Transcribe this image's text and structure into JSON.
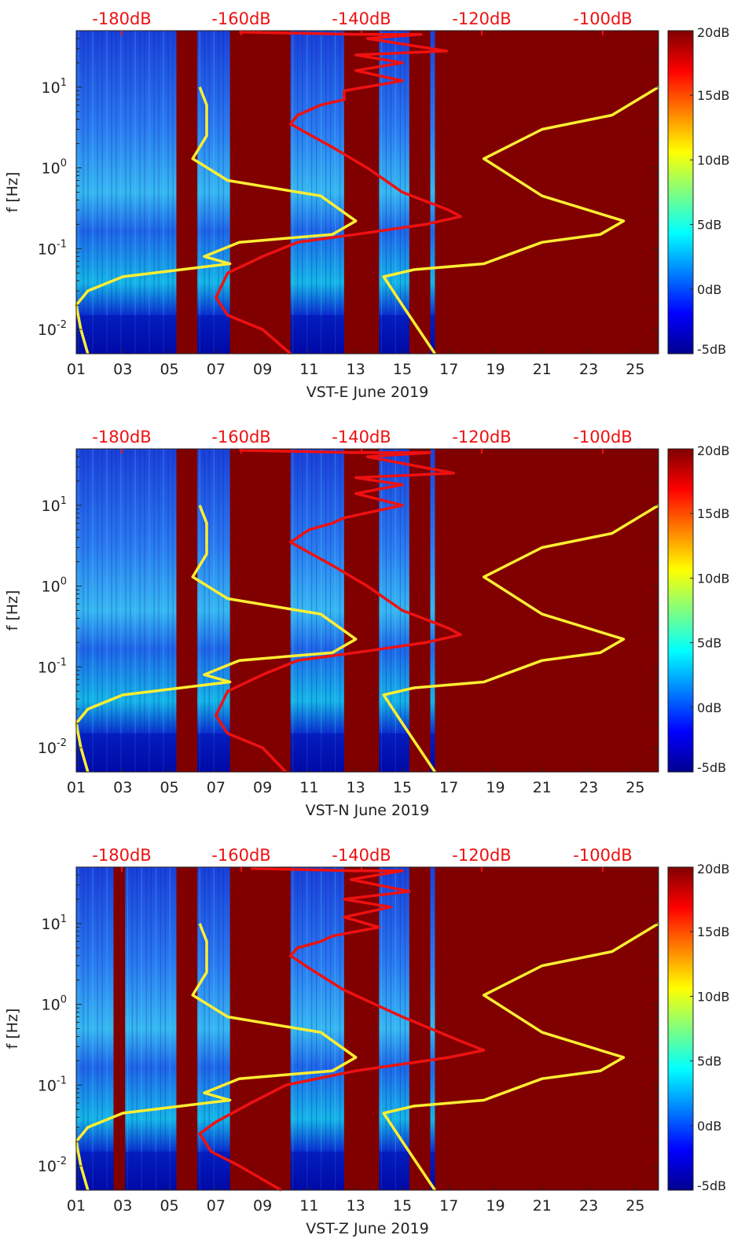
{
  "chart_data": [
    {
      "type": "heatmap",
      "xlabel": "VST-E June 2019",
      "ylabel": "f [Hz]",
      "x_ticks": [
        "01",
        "03",
        "05",
        "07",
        "09",
        "11",
        "13",
        "15",
        "17",
        "19",
        "21",
        "23",
        "25"
      ],
      "x_range": [
        1,
        26
      ],
      "y_scale": "log",
      "y_range": [
        0.005,
        50
      ],
      "y_ticks": [
        "10-2",
        "10-1",
        "100",
        "101"
      ],
      "top_axis_ticks": [
        "-180dB",
        "-160dB",
        "-140dB",
        "-120dB",
        "-100dB"
      ],
      "colorbar": {
        "ticks": [
          "20dB",
          "15dB",
          "10dB",
          "5dB",
          "0dB",
          "-5dB"
        ],
        "range": [
          -5,
          20
        ]
      },
      "data_columns": [
        [
          1,
          5.3
        ],
        [
          6.2,
          7.6
        ],
        [
          10.2,
          12.5
        ],
        [
          14,
          15.3
        ],
        [
          16.2,
          16.4
        ]
      ],
      "series": [
        {
          "color": "#ffee33",
          "points": [
            [
              6.3,
              10
            ],
            [
              6.6,
              6
            ],
            [
              6.6,
              2.5
            ],
            [
              6.0,
              1.3
            ],
            [
              7.5,
              0.7
            ],
            [
              11.5,
              0.45
            ],
            [
              13.0,
              0.22
            ],
            [
              12.0,
              0.15
            ],
            [
              8.0,
              0.12
            ],
            [
              6.5,
              0.08
            ],
            [
              7.6,
              0.065
            ],
            [
              5.5,
              0.055
            ],
            [
              3.0,
              0.045
            ],
            [
              1.5,
              0.03
            ],
            [
              1.0,
              0.02
            ],
            [
              1.2,
              0.01
            ],
            [
              1.5,
              0.005
            ]
          ]
        },
        {
          "color": "#ffee33",
          "points": [
            [
              26.0,
              10
            ],
            [
              24.0,
              4.5
            ],
            [
              21.0,
              3.0
            ],
            [
              18.5,
              1.3
            ],
            [
              21.0,
              0.45
            ],
            [
              24.5,
              0.22
            ],
            [
              23.5,
              0.15
            ],
            [
              21.0,
              0.12
            ],
            [
              18.5,
              0.065
            ],
            [
              15.5,
              0.055
            ],
            [
              14.2,
              0.045
            ],
            [
              15.0,
              0.02
            ],
            [
              16.4,
              0.005
            ]
          ]
        },
        {
          "color": "#ee1111",
          "points": [
            [
              8.0,
              48
            ],
            [
              13.0,
              45
            ],
            [
              15.8,
              45
            ],
            [
              13.5,
              40
            ],
            [
              16.9,
              28
            ],
            [
              13.0,
              25
            ],
            [
              15.0,
              20
            ],
            [
              13.0,
              16
            ],
            [
              15.0,
              12
            ],
            [
              12.5,
              9
            ],
            [
              12.5,
              7
            ],
            [
              11.5,
              6
            ],
            [
              10.5,
              4.5
            ],
            [
              10.2,
              3.5
            ],
            [
              11.0,
              2.6
            ],
            [
              12.0,
              1.8
            ],
            [
              13.5,
              1.0
            ],
            [
              15.0,
              0.5
            ],
            [
              17.0,
              0.3
            ],
            [
              17.5,
              0.25
            ],
            [
              16.0,
              0.2
            ],
            [
              13.0,
              0.15
            ],
            [
              10.5,
              0.12
            ],
            [
              9.0,
              0.08
            ],
            [
              7.5,
              0.05
            ],
            [
              7.0,
              0.025
            ],
            [
              7.5,
              0.015
            ],
            [
              9.0,
              0.01
            ],
            [
              10.2,
              0.005
            ]
          ]
        }
      ]
    },
    {
      "type": "heatmap",
      "xlabel": "VST-N June 2019",
      "ylabel": "f [Hz]",
      "x_ticks": [
        "01",
        "03",
        "05",
        "07",
        "09",
        "11",
        "13",
        "15",
        "17",
        "19",
        "21",
        "23",
        "25"
      ],
      "x_range": [
        1,
        26
      ],
      "y_scale": "log",
      "y_range": [
        0.005,
        50
      ],
      "y_ticks": [
        "10-2",
        "10-1",
        "100",
        "101"
      ],
      "top_axis_ticks": [
        "-180dB",
        "-160dB",
        "-140dB",
        "-120dB",
        "-100dB"
      ],
      "colorbar": {
        "ticks": [
          "20dB",
          "15dB",
          "10dB",
          "5dB",
          "0dB",
          "-5dB"
        ],
        "range": [
          -5,
          20
        ]
      },
      "data_columns": [
        [
          1,
          5.3
        ],
        [
          6.2,
          7.6
        ],
        [
          10.2,
          12.5
        ],
        [
          14,
          15.3
        ],
        [
          16.2,
          16.4
        ]
      ],
      "series": [
        {
          "color": "#ffee33",
          "points": [
            [
              6.3,
              10
            ],
            [
              6.6,
              6
            ],
            [
              6.6,
              2.5
            ],
            [
              6.0,
              1.3
            ],
            [
              7.5,
              0.7
            ],
            [
              11.5,
              0.45
            ],
            [
              13.0,
              0.22
            ],
            [
              12.0,
              0.15
            ],
            [
              8.0,
              0.12
            ],
            [
              6.5,
              0.08
            ],
            [
              7.6,
              0.065
            ],
            [
              5.5,
              0.055
            ],
            [
              3.0,
              0.045
            ],
            [
              1.5,
              0.03
            ],
            [
              1.0,
              0.02
            ],
            [
              1.2,
              0.01
            ],
            [
              1.5,
              0.005
            ]
          ]
        },
        {
          "color": "#ffee33",
          "points": [
            [
              26.0,
              10
            ],
            [
              24.0,
              4.5
            ],
            [
              21.0,
              3.0
            ],
            [
              18.5,
              1.3
            ],
            [
              21.0,
              0.45
            ],
            [
              24.5,
              0.22
            ],
            [
              23.5,
              0.15
            ],
            [
              21.0,
              0.12
            ],
            [
              18.5,
              0.065
            ],
            [
              15.5,
              0.055
            ],
            [
              14.2,
              0.045
            ],
            [
              15.0,
              0.02
            ],
            [
              16.4,
              0.005
            ]
          ]
        },
        {
          "color": "#ee1111",
          "points": [
            [
              8.0,
              48
            ],
            [
              13.0,
              45
            ],
            [
              16.2,
              45
            ],
            [
              13.5,
              40
            ],
            [
              17.2,
              25
            ],
            [
              13.0,
              22
            ],
            [
              15.0,
              18
            ],
            [
              13.0,
              14
            ],
            [
              15.0,
              10
            ],
            [
              12.5,
              7
            ],
            [
              12.0,
              6
            ],
            [
              11.0,
              5
            ],
            [
              10.2,
              3.5
            ],
            [
              11.0,
              2.6
            ],
            [
              12.0,
              1.8
            ],
            [
              13.5,
              1.0
            ],
            [
              15.0,
              0.5
            ],
            [
              17.0,
              0.3
            ],
            [
              17.5,
              0.25
            ],
            [
              16.0,
              0.2
            ],
            [
              13.0,
              0.15
            ],
            [
              10.5,
              0.12
            ],
            [
              9.0,
              0.08
            ],
            [
              7.5,
              0.05
            ],
            [
              7.0,
              0.025
            ],
            [
              7.5,
              0.015
            ],
            [
              9.0,
              0.01
            ],
            [
              10.0,
              0.005
            ]
          ]
        }
      ]
    },
    {
      "type": "heatmap",
      "xlabel": "VST-Z June 2019",
      "ylabel": "f [Hz]",
      "x_ticks": [
        "01",
        "03",
        "05",
        "07",
        "09",
        "11",
        "13",
        "15",
        "17",
        "19",
        "21",
        "23",
        "25"
      ],
      "x_range": [
        1,
        26
      ],
      "y_scale": "log",
      "y_range": [
        0.005,
        50
      ],
      "y_ticks": [
        "10-2",
        "10-1",
        "100",
        "101"
      ],
      "top_axis_ticks": [
        "-180dB",
        "-160dB",
        "-140dB",
        "-120dB",
        "-100dB"
      ],
      "colorbar": {
        "ticks": [
          "20dB",
          "15dB",
          "10dB",
          "5dB",
          "0dB",
          "-5dB"
        ],
        "range": [
          -5,
          20
        ]
      },
      "data_columns": [
        [
          1,
          2.6
        ],
        [
          3.1,
          5.3
        ],
        [
          6.2,
          7.6
        ],
        [
          10.2,
          12.5
        ],
        [
          14,
          15.3
        ],
        [
          16.2,
          16.4
        ]
      ],
      "series": [
        {
          "color": "#ffee33",
          "points": [
            [
              6.3,
              10
            ],
            [
              6.6,
              6
            ],
            [
              6.6,
              2.5
            ],
            [
              6.0,
              1.3
            ],
            [
              7.5,
              0.7
            ],
            [
              11.5,
              0.45
            ],
            [
              13.0,
              0.22
            ],
            [
              12.0,
              0.15
            ],
            [
              8.0,
              0.12
            ],
            [
              6.5,
              0.08
            ],
            [
              7.6,
              0.065
            ],
            [
              5.5,
              0.055
            ],
            [
              3.0,
              0.045
            ],
            [
              1.5,
              0.03
            ],
            [
              1.0,
              0.02
            ],
            [
              1.2,
              0.01
            ],
            [
              1.5,
              0.005
            ]
          ]
        },
        {
          "color": "#ffee33",
          "points": [
            [
              26.0,
              10
            ],
            [
              24.0,
              4.5
            ],
            [
              21.0,
              3.0
            ],
            [
              18.5,
              1.3
            ],
            [
              21.0,
              0.45
            ],
            [
              24.5,
              0.22
            ],
            [
              23.5,
              0.15
            ],
            [
              21.0,
              0.12
            ],
            [
              18.5,
              0.065
            ],
            [
              15.5,
              0.055
            ],
            [
              14.2,
              0.045
            ],
            [
              15.0,
              0.02
            ],
            [
              16.4,
              0.005
            ]
          ]
        },
        {
          "color": "#ee1111",
          "points": [
            [
              8.5,
              48
            ],
            [
              13.0,
              45
            ],
            [
              15.0,
              45
            ],
            [
              12.8,
              35
            ],
            [
              15.3,
              25
            ],
            [
              12.5,
              20
            ],
            [
              14.5,
              16
            ],
            [
              12.5,
              12
            ],
            [
              14.0,
              9
            ],
            [
              12.0,
              7
            ],
            [
              11.5,
              6
            ],
            [
              10.5,
              5
            ],
            [
              10.2,
              4
            ],
            [
              11.0,
              2.8
            ],
            [
              12.5,
              1.5
            ],
            [
              15.0,
              0.7
            ],
            [
              17.5,
              0.35
            ],
            [
              18.5,
              0.27
            ],
            [
              17.0,
              0.22
            ],
            [
              13.0,
              0.15
            ],
            [
              10.0,
              0.1
            ],
            [
              8.5,
              0.06
            ],
            [
              7.0,
              0.035
            ],
            [
              6.3,
              0.025
            ],
            [
              6.8,
              0.015
            ],
            [
              8.0,
              0.01
            ],
            [
              9.8,
              0.005
            ]
          ]
        }
      ]
    }
  ]
}
